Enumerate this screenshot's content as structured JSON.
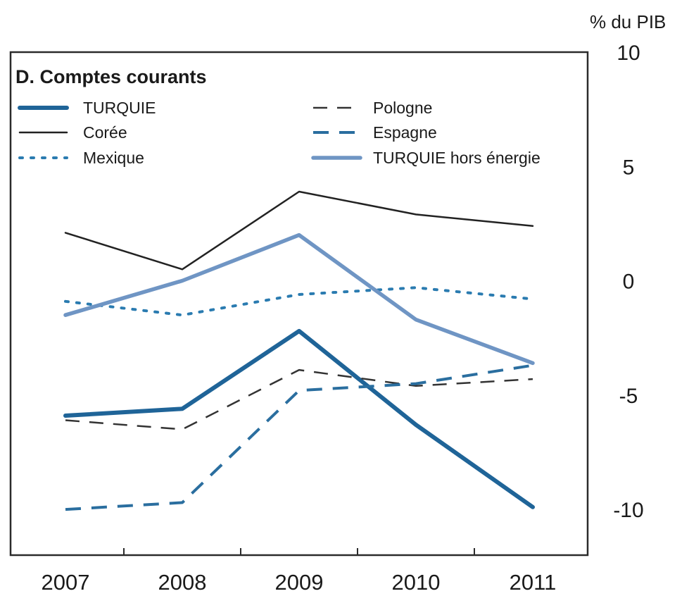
{
  "chart_data": {
    "type": "line",
    "title": "D. Comptes courants",
    "y_unit": "% du PIB",
    "x": [
      "2007",
      "2008",
      "2009",
      "2010",
      "2011"
    ],
    "ylim": [
      -12,
      10
    ],
    "y_ticks": [
      10,
      5,
      0,
      -5,
      -10
    ],
    "y_tick_labels": [
      "10",
      "5",
      "0",
      "-5",
      "-10"
    ],
    "grid": false,
    "legend_position": "top-left",
    "series": [
      {
        "name": "TURQUIE",
        "values": [
          -5.9,
          -5.6,
          -2.2,
          -6.3,
          -9.9
        ],
        "color": "#1f6498",
        "style": "solid-thick"
      },
      {
        "name": "Corée",
        "values": [
          2.1,
          0.5,
          3.9,
          2.9,
          2.4
        ],
        "color": "#222222",
        "style": "solid-thin"
      },
      {
        "name": "Mexique",
        "values": [
          -0.9,
          -1.5,
          -0.6,
          -0.3,
          -0.8
        ],
        "color": "#2a7bb0",
        "style": "dotted"
      },
      {
        "name": "Pologne",
        "values": [
          -6.1,
          -6.5,
          -3.9,
          -4.6,
          -4.3
        ],
        "color": "#333333",
        "style": "dashed-thin"
      },
      {
        "name": "Espagne",
        "values": [
          -10.0,
          -9.7,
          -4.8,
          -4.5,
          -3.7
        ],
        "color": "#2a6e9f",
        "style": "dashed-thick"
      },
      {
        "name": "TURQUIE hors énergie",
        "values": [
          -1.5,
          0.0,
          2.0,
          -1.7,
          -3.6
        ],
        "color": "#6f95c4",
        "style": "solid-medium"
      }
    ]
  }
}
